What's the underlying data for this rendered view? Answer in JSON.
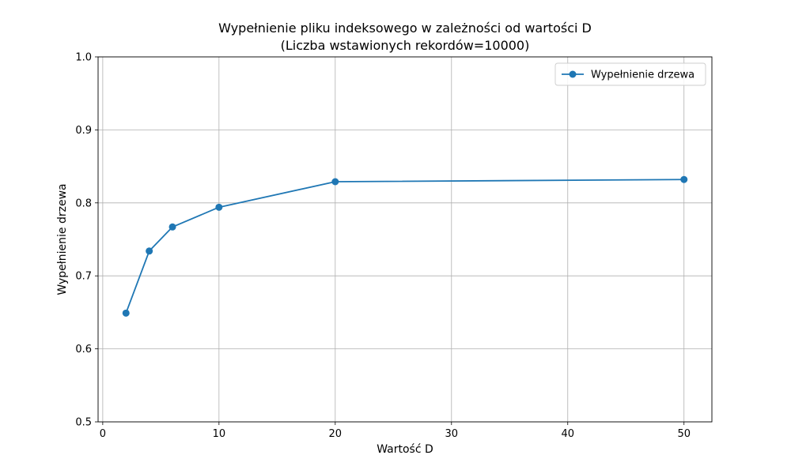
{
  "chart_data": {
    "type": "line",
    "title": "Wypełnienie pliku indeksowego w zależności od wartości D",
    "subtitle": "(Liczba wstawionych rekordów=10000)",
    "xlabel": "Wartość D",
    "ylabel": "Wypełnienie drzewa",
    "xlim": [
      -0.4,
      52.4
    ],
    "ylim": [
      0.5,
      1.0
    ],
    "xticks": [
      0,
      10,
      20,
      30,
      40,
      50
    ],
    "yticks": [
      0.5,
      0.6,
      0.7,
      0.8,
      0.9,
      1.0
    ],
    "xtick_labels": [
      "0",
      "10",
      "20",
      "30",
      "40",
      "50"
    ],
    "ytick_labels": [
      "0.5",
      "0.6",
      "0.7",
      "0.8",
      "0.9",
      "1.0"
    ],
    "grid": true,
    "legend_position": "top-right",
    "series": [
      {
        "name": "Wypełnienie drzewa",
        "color": "#1f77b4",
        "marker": "circle",
        "x": [
          2,
          4,
          6,
          10,
          20,
          50
        ],
        "y": [
          0.649,
          0.734,
          0.767,
          0.794,
          0.829,
          0.832
        ]
      }
    ]
  }
}
